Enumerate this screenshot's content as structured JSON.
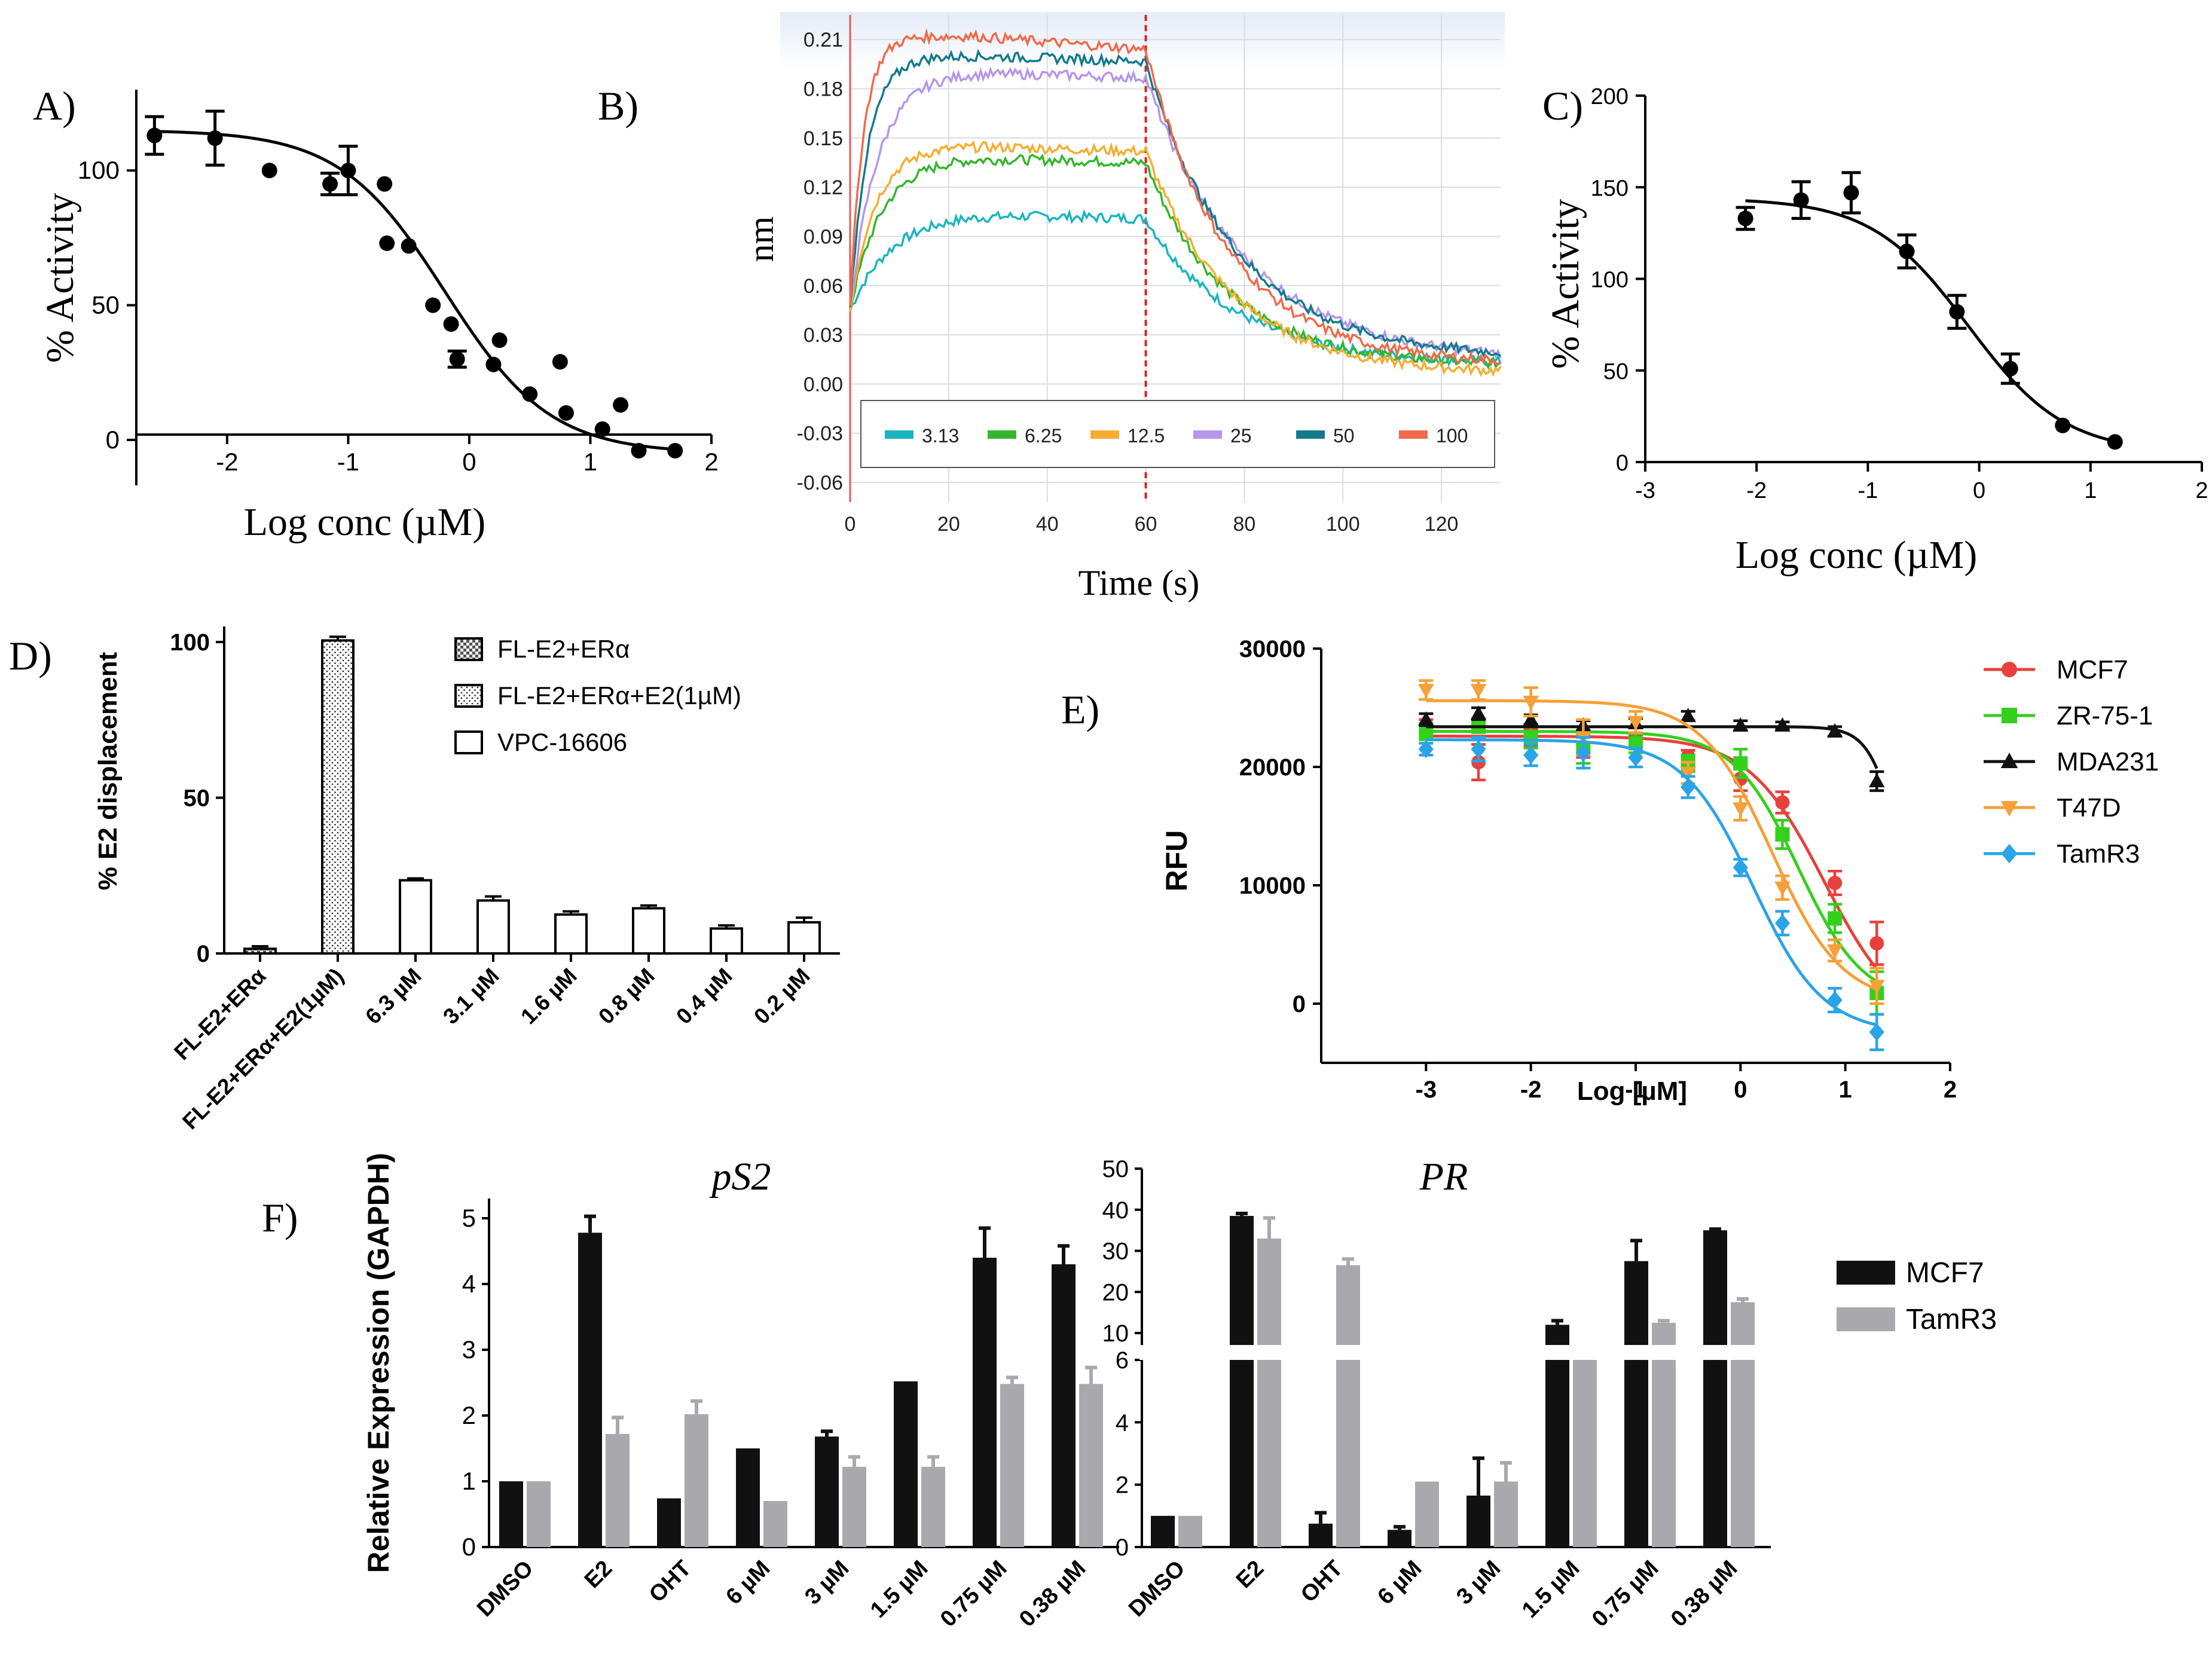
{
  "colors": {
    "black": "#111111",
    "gray": "#a9a9ad",
    "red": "#e8403c",
    "green": "#33d01c",
    "orange": "#f5a038",
    "blue": "#2aa4e6",
    "teal_bli": "#19b5bf",
    "green_bli": "#33b62b",
    "orange_bli": "#f6ad2f",
    "purple_bli": "#b795ea",
    "darkteal_bli": "#137a8c",
    "red_bli": "#f06a4a"
  },
  "chart_data": [
    {
      "id": "A",
      "panel_label": "A)",
      "type": "scatter",
      "xlabel": "Log conc (µM)",
      "ylabel": "% Activity",
      "xlim": [
        -2.75,
        2
      ],
      "ylim": [
        -8,
        130
      ],
      "xticks": [
        "-2",
        "-1",
        "0",
        "1",
        "2"
      ],
      "yticks": [
        "0",
        "50",
        "100"
      ],
      "points": [
        {
          "x": -2.6,
          "y": 113,
          "err": 7
        },
        {
          "x": -2.1,
          "y": 112,
          "err": 10
        },
        {
          "x": -1.65,
          "y": 100,
          "err": 0
        },
        {
          "x": -1.15,
          "y": 95,
          "err": 4
        },
        {
          "x": -1.0,
          "y": 100,
          "err": 9
        },
        {
          "x": -0.7,
          "y": 95,
          "err": 0
        },
        {
          "x": -0.68,
          "y": 73,
          "err": 0
        },
        {
          "x": -0.5,
          "y": 72,
          "err": 0
        },
        {
          "x": -0.3,
          "y": 50,
          "err": 0
        },
        {
          "x": -0.15,
          "y": 43,
          "err": 0
        },
        {
          "x": -0.1,
          "y": 30,
          "err": 3
        },
        {
          "x": 0.25,
          "y": 37,
          "err": 0
        },
        {
          "x": 0.2,
          "y": 28,
          "err": 0
        },
        {
          "x": 0.5,
          "y": 17,
          "err": 0
        },
        {
          "x": 0.75,
          "y": 29,
          "err": 0
        },
        {
          "x": 0.8,
          "y": 10,
          "err": 0
        },
        {
          "x": 1.1,
          "y": 4,
          "err": 0
        },
        {
          "x": 1.25,
          "y": 13,
          "err": 0
        },
        {
          "x": 1.4,
          "y": -4,
          "err": 0
        },
        {
          "x": 1.7,
          "y": -4,
          "err": 0
        }
      ],
      "fit": {
        "top": 115,
        "bottom": -5,
        "logec50": -0.2,
        "hill": 1.0,
        "xrange": [
          -2.6,
          1.7
        ]
      }
    },
    {
      "id": "B",
      "panel_label": "B)",
      "type": "line",
      "xlabel": "Time (s)",
      "ylabel": "nm",
      "xlim": [
        0,
        132
      ],
      "ylim": [
        -0.072,
        0.225
      ],
      "xticks": [
        "0",
        "20",
        "40",
        "60",
        "80",
        "100",
        "120"
      ],
      "yticks": [
        "-0.06",
        "-0.03",
        "0.00",
        "0.03",
        "0.06",
        "0.09",
        "0.12",
        "0.15",
        "0.18",
        "0.21"
      ],
      "legend_location": "bottom",
      "switch_time": 60,
      "series": [
        {
          "name": "3.13",
          "plateau": 0.104,
          "kon": 0.12,
          "koff": 0.055,
          "tail": 0.012
        },
        {
          "name": "6.25",
          "plateau": 0.138,
          "kon": 0.16,
          "koff": 0.06,
          "tail": 0.011
        },
        {
          "name": "12.5",
          "plateau": 0.145,
          "kon": 0.2,
          "koff": 0.058,
          "tail": 0.006
        },
        {
          "name": "25",
          "plateau": 0.19,
          "kon": 0.18,
          "koff": 0.05,
          "tail": 0.014
        },
        {
          "name": "50",
          "plateau": 0.2,
          "kon": 0.28,
          "koff": 0.055,
          "tail": 0.016
        },
        {
          "name": "100",
          "plateau": 0.212,
          "kon": 0.38,
          "koff": 0.06,
          "tail": 0.012
        }
      ]
    },
    {
      "id": "C",
      "panel_label": "C)",
      "type": "scatter",
      "xlabel": "Log conc (µM)",
      "ylabel": "% Activity",
      "xlim": [
        -3,
        2
      ],
      "ylim": [
        0,
        200
      ],
      "xticks": [
        "-3",
        "-2",
        "-1",
        "0",
        "1",
        "2"
      ],
      "yticks": [
        "0",
        "50",
        "100",
        "150",
        "200"
      ],
      "points": [
        {
          "x": -2.1,
          "y": 133,
          "err": 6
        },
        {
          "x": -1.6,
          "y": 143,
          "err": 10
        },
        {
          "x": -1.15,
          "y": 147,
          "err": 11
        },
        {
          "x": -0.65,
          "y": 115,
          "err": 9
        },
        {
          "x": -0.2,
          "y": 82,
          "err": 9
        },
        {
          "x": 0.28,
          "y": 51,
          "err": 8
        },
        {
          "x": 0.75,
          "y": 20,
          "err": 0
        },
        {
          "x": 1.22,
          "y": 11,
          "err": 0
        }
      ],
      "fit": {
        "top": 144,
        "bottom": 5,
        "logec50": -0.1,
        "hill": 1.0,
        "xrange": [
          -2.1,
          1.22
        ]
      }
    },
    {
      "id": "D",
      "panel_label": "D)",
      "type": "bar",
      "ylabel": "% E2 displacement",
      "ylim": [
        0,
        105
      ],
      "yticks": [
        "0",
        "50",
        "100"
      ],
      "categories": [
        "FL-E2+ERα",
        "FL-E2+ERα+E2(1µM)",
        "6.3 µM",
        "3.1 µM",
        "1.6 µM",
        "0.8 µM",
        "0.4 µM",
        "0.2 µM"
      ],
      "values": [
        1.5,
        100.5,
        23.5,
        17,
        12.5,
        14.5,
        8,
        10
      ],
      "errors": [
        0.8,
        1.2,
        0.6,
        1.3,
        1,
        0.9,
        1,
        1.5
      ],
      "styles": [
        "checker",
        "dots",
        "open",
        "open",
        "open",
        "open",
        "open",
        "open"
      ],
      "legend": [
        "FL-E2+ERα",
        "FL-E2+ERα+E2(1µM)",
        "VPC-16606"
      ]
    },
    {
      "id": "E",
      "panel_label": "E)",
      "type": "scatter",
      "xlabel": "Log [µM]",
      "ylabel": "RFU",
      "xlim": [
        -4,
        2
      ],
      "ylim": [
        -5000,
        30000
      ],
      "xticks": [
        "-3",
        "-2",
        "-1",
        "0",
        "1",
        "2"
      ],
      "yticks": [
        "0",
        "10000",
        "20000",
        "30000"
      ],
      "x_points": [
        -3,
        -2.5,
        -2,
        -1.5,
        -1,
        -0.5,
        0,
        0.4,
        0.9,
        1.3
      ],
      "series": [
        {
          "name": "MCF7",
          "color": "red",
          "marker": "circle",
          "top": 22600,
          "bottom": -2000,
          "logec50": 0.8,
          "hill": 1.2,
          "values": [
            23500,
            20400,
            22500,
            21700,
            22100,
            20900,
            19000,
            17000,
            10200,
            5100
          ],
          "err": [
            500,
            1500,
            700,
            900,
            500,
            500,
            1000,
            900,
            1000,
            1800
          ]
        },
        {
          "name": "ZR-75-1",
          "color": "green",
          "marker": "square",
          "top": 23000,
          "bottom": 0,
          "logec50": 0.55,
          "hill": 1.4,
          "values": [
            23000,
            23500,
            22500,
            21500,
            22000,
            20300,
            20300,
            14300,
            7200,
            900
          ],
          "err": [
            700,
            600,
            900,
            1200,
            800,
            700,
            1200,
            1200,
            1200,
            1800
          ]
        },
        {
          "name": "MDA231",
          "color": "black",
          "marker": "triangle",
          "top": 23400,
          "bottom": 0,
          "logec50": 1.55,
          "hill": 3.0,
          "values": [
            24000,
            24500,
            24000,
            23500,
            23700,
            24300,
            23500,
            23500,
            23000,
            18800
          ],
          "err": [
            500,
            500,
            400,
            400,
            400,
            400,
            400,
            300,
            400,
            800
          ]
        },
        {
          "name": "T47D",
          "color": "orange",
          "marker": "tri-down",
          "top": 25600,
          "bottom": 0,
          "logec50": 0.3,
          "hill": 1.3,
          "values": [
            26500,
            26500,
            25500,
            22500,
            23800,
            19500,
            16500,
            9800,
            4500,
            1500
          ],
          "err": [
            800,
            800,
            1200,
            1500,
            900,
            900,
            1000,
            1000,
            900,
            1500
          ]
        },
        {
          "name": "TamR3",
          "color": "blue",
          "marker": "diamond",
          "top": 22300,
          "bottom": -2500,
          "logec50": 0.12,
          "hill": 1.3,
          "values": [
            21500,
            21500,
            21000,
            21200,
            20800,
            18300,
            11500,
            6800,
            300,
            -2400
          ],
          "err": [
            500,
            1000,
            900,
            1300,
            800,
            900,
            700,
            1000,
            1000,
            1500
          ]
        }
      ]
    },
    {
      "id": "F-pS2",
      "panel_label": "F)",
      "type": "bar",
      "title": "pS2",
      "ylabel": "Relative Expression (GAPDH)",
      "ylim": [
        0,
        5.3
      ],
      "yticks": [
        "0",
        "1",
        "2",
        "3",
        "4",
        "5"
      ],
      "categories": [
        "DMSO",
        "E2",
        "OHT",
        "6 µM",
        "3 µM",
        "1.5 µM",
        "0.75 µM",
        "0.38 µM"
      ],
      "series": [
        {
          "name": "MCF7",
          "color": "black",
          "values": [
            1.0,
            4.78,
            0.74,
            1.5,
            1.68,
            2.52,
            4.4,
            4.3
          ],
          "errors": [
            0,
            0.25,
            0,
            0,
            0.08,
            0,
            0.45,
            0.28
          ]
        },
        {
          "name": "TamR3",
          "color": "gray",
          "values": [
            1.0,
            1.72,
            2.02,
            0.7,
            1.22,
            1.22,
            2.48,
            2.48
          ],
          "errors": [
            0,
            0.25,
            0.2,
            0,
            0.15,
            0.15,
            0.1,
            0.25
          ]
        }
      ]
    },
    {
      "id": "F-PR",
      "type": "bar",
      "title": "PR",
      "ylim_lower": [
        0,
        6
      ],
      "ylim_upper": [
        6,
        50
      ],
      "yticks_lower": [
        "0",
        "2",
        "4",
        "6"
      ],
      "yticks_upper": [
        "10",
        "20",
        "30",
        "40",
        "50"
      ],
      "axis_break": [
        6,
        8
      ],
      "categories": [
        "DMSO",
        "E2",
        "OHT",
        "6 µM",
        "3 µM",
        "1.5 µM",
        "0.75 µM",
        "0.38 µM"
      ],
      "series": [
        {
          "name": "MCF7",
          "color": "black",
          "values": [
            1.0,
            38.5,
            0.75,
            0.55,
            1.65,
            12,
            27.5,
            35
          ],
          "errors": [
            0,
            0.6,
            0.35,
            0.1,
            1.2,
            1.0,
            5,
            0.3
          ]
        },
        {
          "name": "TamR3",
          "color": "gray",
          "values": [
            1.0,
            33,
            26.5,
            2.1,
            2.1,
            8,
            12.5,
            17.5
          ],
          "errors": [
            0,
            5,
            1.5,
            0,
            0.6,
            1.5,
            0.5,
            0.8
          ]
        }
      ],
      "legend": [
        "MCF7",
        "TamR3"
      ]
    }
  ]
}
